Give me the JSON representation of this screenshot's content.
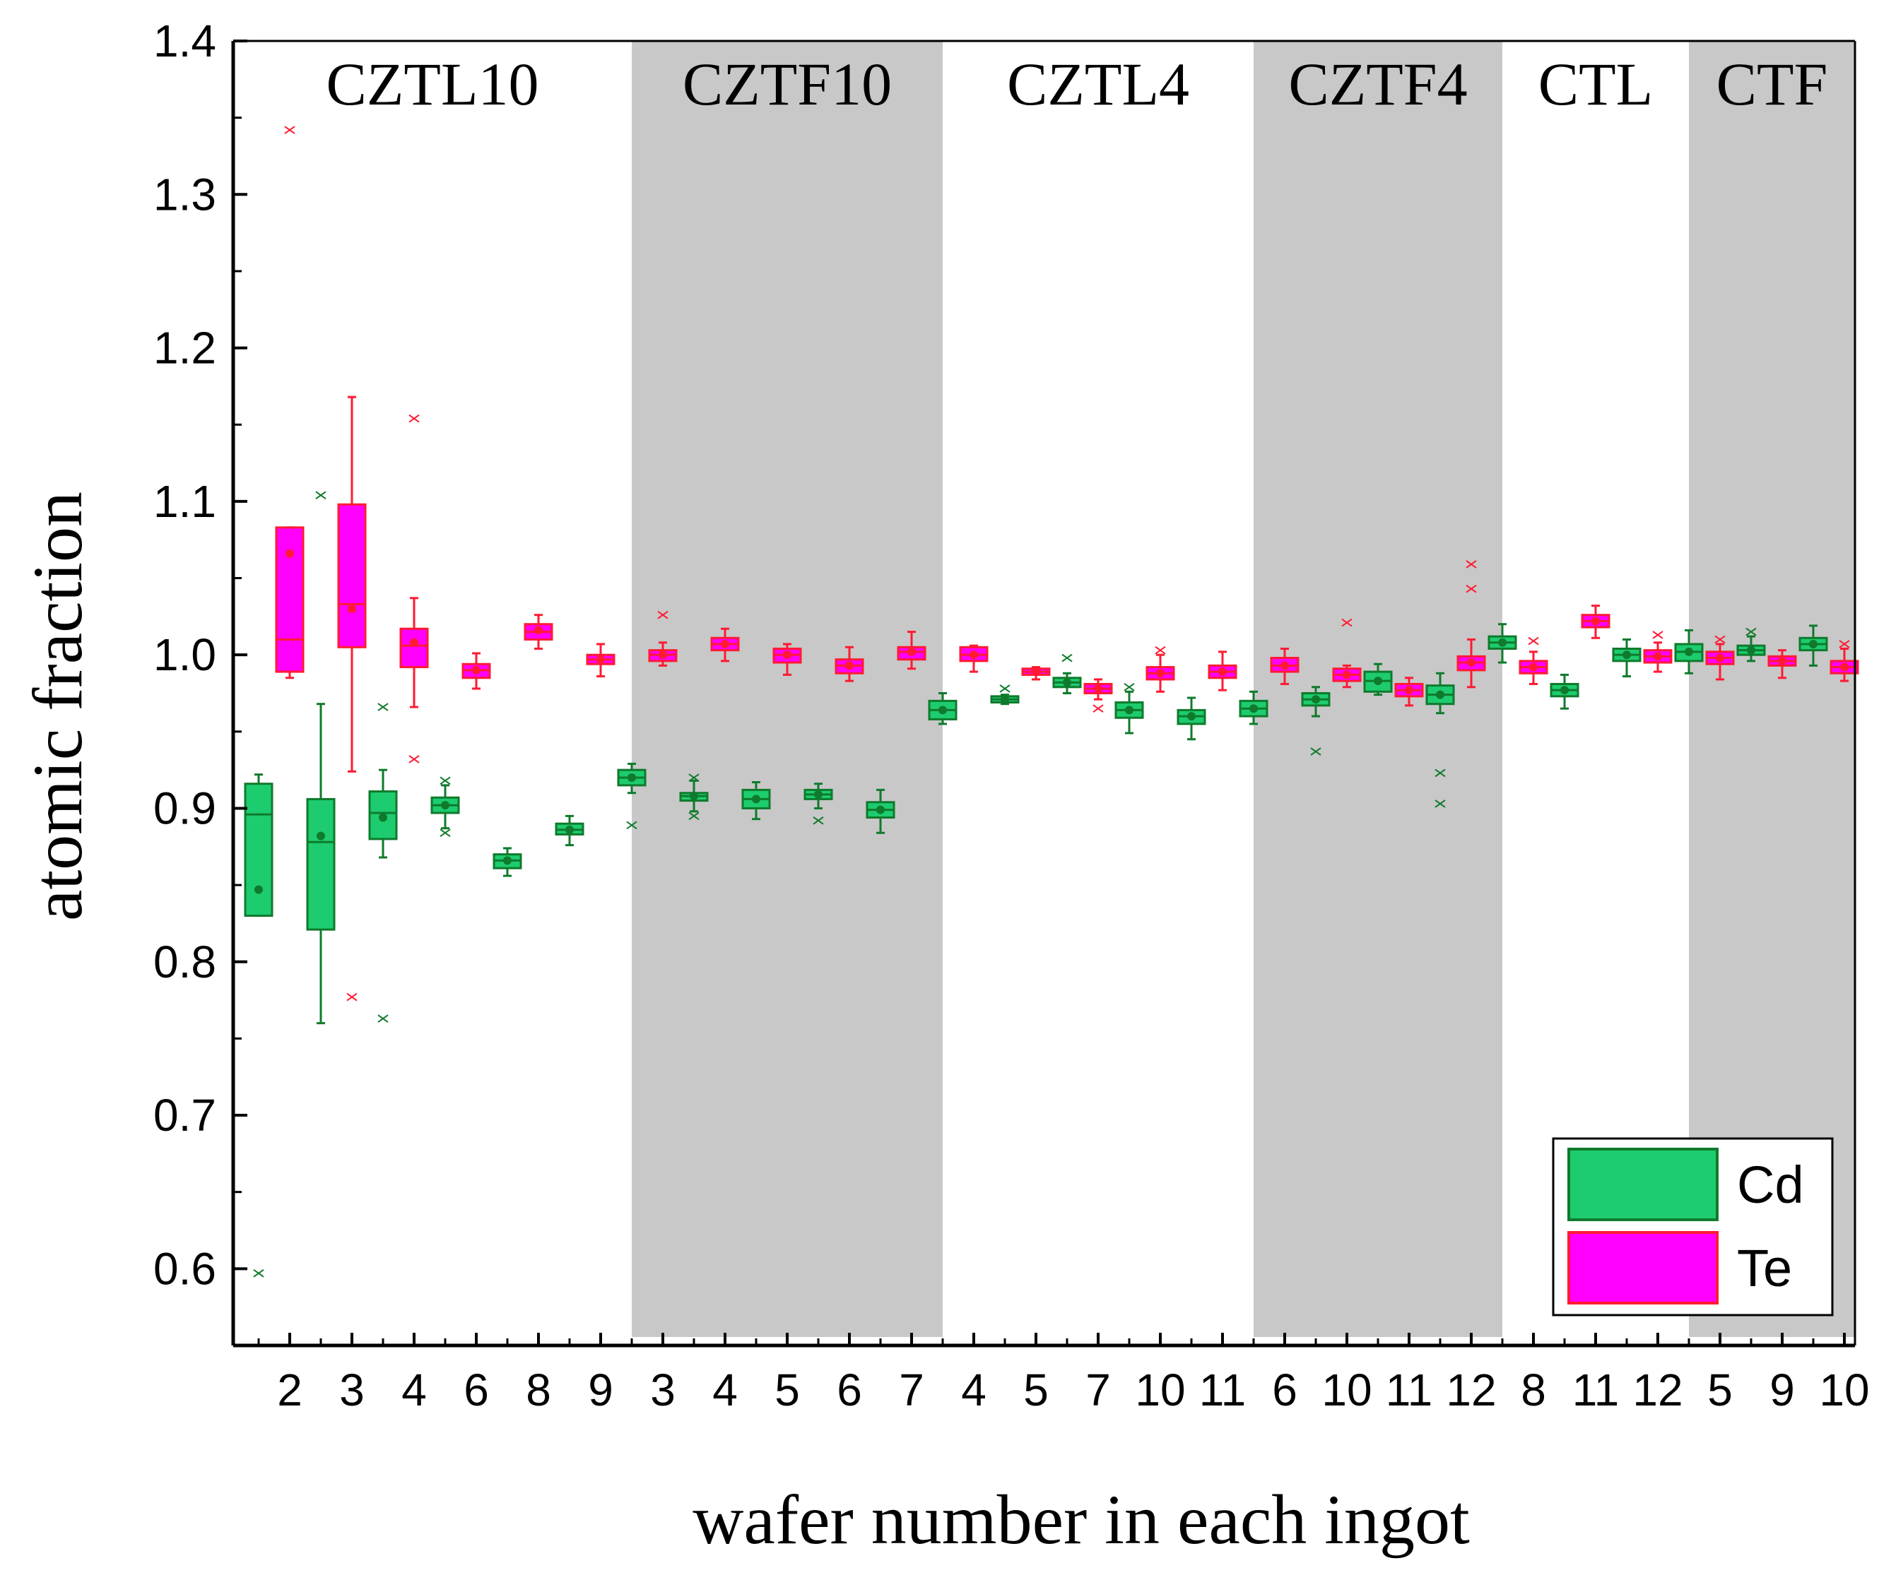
{
  "chart_data": {
    "type": "box",
    "title": "",
    "xlabel": "wafer number in each ingot",
    "ylabel": "atomic fraction",
    "ylim": [
      0.55,
      1.4
    ],
    "yticks": [
      "0.6",
      "0.7",
      "0.8",
      "0.9",
      "1.0",
      "1.1",
      "1.2",
      "1.3",
      "1.4"
    ],
    "legend": {
      "position": "bottom-right",
      "entries": [
        {
          "name": "Cd",
          "color": "#1dcc6f"
        },
        {
          "name": "Te",
          "color": "#ff00ff"
        }
      ]
    },
    "colors": {
      "cd_fill": "#1dcc6f",
      "cd_stroke": "#0f7a2c",
      "te_fill": "#ff00ff",
      "te_stroke": "#ff1a33",
      "shade": "#c8c8c8"
    },
    "groups": [
      {
        "name": "CZTL10",
        "shaded": false,
        "start": 0,
        "end": 6
      },
      {
        "name": "CZTF10",
        "shaded": true,
        "start": 6,
        "end": 11
      },
      {
        "name": "CZTL4",
        "shaded": false,
        "start": 11,
        "end": 16
      },
      {
        "name": "CZTF4",
        "shaded": true,
        "start": 16,
        "end": 20
      },
      {
        "name": "CTL",
        "shaded": false,
        "start": 20,
        "end": 23
      },
      {
        "name": "CTF",
        "shaded": true,
        "start": 23,
        "end": 26
      }
    ],
    "categories": [
      "2",
      "3",
      "4",
      "6",
      "8",
      "9",
      "3",
      "4",
      "5",
      "6",
      "7",
      "4",
      "5",
      "7",
      "10",
      "11",
      "6",
      "10",
      "11",
      "12",
      "8",
      "11",
      "12",
      "5",
      "9",
      "10"
    ],
    "series": [
      {
        "name": "Cd",
        "boxes": [
          {
            "q1": 0.83,
            "median": 0.896,
            "q3": 0.916,
            "mean": 0.847,
            "wlo": 0.83,
            "whi": 0.922,
            "outliers": [
              0.597
            ]
          },
          {
            "q1": 0.821,
            "median": 0.878,
            "q3": 0.906,
            "mean": 0.882,
            "wlo": 0.76,
            "whi": 0.968,
            "outliers": [
              1.104
            ]
          },
          {
            "q1": 0.88,
            "median": 0.897,
            "q3": 0.911,
            "mean": 0.894,
            "wlo": 0.868,
            "whi": 0.925,
            "outliers": [
              0.966,
              0.763
            ]
          },
          {
            "q1": 0.897,
            "median": 0.902,
            "q3": 0.907,
            "mean": 0.902,
            "wlo": 0.887,
            "whi": 0.915,
            "outliers": [
              0.918,
              0.884
            ]
          },
          {
            "q1": 0.861,
            "median": 0.866,
            "q3": 0.87,
            "mean": 0.866,
            "wlo": 0.856,
            "whi": 0.874,
            "outliers": []
          },
          {
            "q1": 0.883,
            "median": 0.886,
            "q3": 0.89,
            "mean": 0.886,
            "wlo": 0.876,
            "whi": 0.895,
            "outliers": []
          },
          {
            "q1": 0.915,
            "median": 0.92,
            "q3": 0.925,
            "mean": 0.92,
            "wlo": 0.91,
            "whi": 0.929,
            "outliers": [
              0.889
            ]
          },
          {
            "q1": 0.905,
            "median": 0.908,
            "q3": 0.91,
            "mean": 0.908,
            "wlo": 0.898,
            "whi": 0.918,
            "outliers": [
              0.92,
              0.895
            ]
          },
          {
            "q1": 0.9,
            "median": 0.906,
            "q3": 0.912,
            "mean": 0.906,
            "wlo": 0.893,
            "whi": 0.917,
            "outliers": []
          },
          {
            "q1": 0.906,
            "median": 0.909,
            "q3": 0.912,
            "mean": 0.909,
            "wlo": 0.9,
            "whi": 0.916,
            "outliers": [
              0.892
            ]
          },
          {
            "q1": 0.894,
            "median": 0.899,
            "q3": 0.904,
            "mean": 0.899,
            "wlo": 0.884,
            "whi": 0.912,
            "outliers": []
          },
          {
            "q1": 0.958,
            "median": 0.964,
            "q3": 0.97,
            "mean": 0.964,
            "wlo": 0.955,
            "whi": 0.975,
            "outliers": []
          },
          {
            "q1": 0.969,
            "median": 0.971,
            "q3": 0.973,
            "mean": 0.971,
            "wlo": 0.968,
            "whi": 0.974,
            "outliers": [
              0.978
            ]
          },
          {
            "q1": 0.979,
            "median": 0.982,
            "q3": 0.985,
            "mean": 0.982,
            "wlo": 0.975,
            "whi": 0.988,
            "outliers": [
              0.998
            ]
          },
          {
            "q1": 0.959,
            "median": 0.964,
            "q3": 0.969,
            "mean": 0.964,
            "wlo": 0.949,
            "whi": 0.976,
            "outliers": [
              0.979
            ]
          },
          {
            "q1": 0.955,
            "median": 0.96,
            "q3": 0.964,
            "mean": 0.96,
            "wlo": 0.945,
            "whi": 0.972,
            "outliers": []
          },
          {
            "q1": 0.96,
            "median": 0.965,
            "q3": 0.97,
            "mean": 0.965,
            "wlo": 0.955,
            "whi": 0.976,
            "outliers": []
          },
          {
            "q1": 0.967,
            "median": 0.971,
            "q3": 0.975,
            "mean": 0.971,
            "wlo": 0.96,
            "whi": 0.979,
            "outliers": [
              0.937
            ]
          },
          {
            "q1": 0.976,
            "median": 0.983,
            "q3": 0.989,
            "mean": 0.983,
            "wlo": 0.974,
            "whi": 0.994,
            "outliers": []
          },
          {
            "q1": 0.968,
            "median": 0.974,
            "q3": 0.98,
            "mean": 0.974,
            "wlo": 0.962,
            "whi": 0.988,
            "outliers": [
              0.923,
              0.903
            ]
          },
          {
            "q1": 1.004,
            "median": 1.008,
            "q3": 1.012,
            "mean": 1.008,
            "wlo": 0.995,
            "whi": 1.02,
            "outliers": []
          },
          {
            "q1": 0.973,
            "median": 0.977,
            "q3": 0.981,
            "mean": 0.977,
            "wlo": 0.965,
            "whi": 0.987,
            "outliers": []
          },
          {
            "q1": 0.996,
            "median": 1.0,
            "q3": 1.004,
            "mean": 1.0,
            "wlo": 0.986,
            "whi": 1.01,
            "outliers": []
          },
          {
            "q1": 0.996,
            "median": 1.002,
            "q3": 1.007,
            "mean": 1.002,
            "wlo": 0.988,
            "whi": 1.016,
            "outliers": []
          },
          {
            "q1": 1.0,
            "median": 1.003,
            "q3": 1.006,
            "mean": 1.003,
            "wlo": 0.996,
            "whi": 1.012,
            "outliers": [
              1.015
            ]
          },
          {
            "q1": 1.003,
            "median": 1.007,
            "q3": 1.011,
            "mean": 1.007,
            "wlo": 0.993,
            "whi": 1.019,
            "outliers": []
          }
        ]
      },
      {
        "name": "Te",
        "boxes": [
          {
            "q1": 0.989,
            "median": 1.01,
            "q3": 1.083,
            "mean": 1.066,
            "wlo": 0.985,
            "whi": 1.083,
            "outliers": [
              1.342
            ]
          },
          {
            "q1": 1.005,
            "median": 1.033,
            "q3": 1.098,
            "mean": 1.03,
            "wlo": 0.924,
            "whi": 1.168,
            "outliers": [
              0.777
            ]
          },
          {
            "q1": 0.992,
            "median": 1.006,
            "q3": 1.017,
            "mean": 1.008,
            "wlo": 0.966,
            "whi": 1.037,
            "outliers": [
              1.154,
              0.932
            ]
          },
          {
            "q1": 0.985,
            "median": 0.99,
            "q3": 0.994,
            "mean": 0.99,
            "wlo": 0.978,
            "whi": 1.001,
            "outliers": []
          },
          {
            "q1": 1.01,
            "median": 1.015,
            "q3": 1.02,
            "mean": 1.016,
            "wlo": 1.004,
            "whi": 1.026,
            "outliers": []
          },
          {
            "q1": 0.994,
            "median": 0.997,
            "q3": 1.0,
            "mean": 0.997,
            "wlo": 0.986,
            "whi": 1.007,
            "outliers": []
          },
          {
            "q1": 0.996,
            "median": 1.0,
            "q3": 1.003,
            "mean": 1.0,
            "wlo": 0.993,
            "whi": 1.008,
            "outliers": [
              1.026
            ]
          },
          {
            "q1": 1.003,
            "median": 1.007,
            "q3": 1.011,
            "mean": 1.007,
            "wlo": 0.996,
            "whi": 1.017,
            "outliers": []
          },
          {
            "q1": 0.995,
            "median": 1.0,
            "q3": 1.004,
            "mean": 1.0,
            "wlo": 0.987,
            "whi": 1.007,
            "outliers": []
          },
          {
            "q1": 0.988,
            "median": 0.993,
            "q3": 0.997,
            "mean": 0.993,
            "wlo": 0.983,
            "whi": 1.005,
            "outliers": []
          },
          {
            "q1": 0.997,
            "median": 1.002,
            "q3": 1.005,
            "mean": 1.002,
            "wlo": 0.991,
            "whi": 1.015,
            "outliers": []
          },
          {
            "q1": 0.996,
            "median": 1.0,
            "q3": 1.005,
            "mean": 1.0,
            "wlo": 0.989,
            "whi": 1.006,
            "outliers": []
          },
          {
            "q1": 0.987,
            "median": 0.989,
            "q3": 0.991,
            "mean": 0.989,
            "wlo": 0.984,
            "whi": 0.992,
            "outliers": []
          },
          {
            "q1": 0.975,
            "median": 0.978,
            "q3": 0.981,
            "mean": 0.978,
            "wlo": 0.971,
            "whi": 0.984,
            "outliers": [
              0.965
            ]
          },
          {
            "q1": 0.984,
            "median": 0.988,
            "q3": 0.992,
            "mean": 0.988,
            "wlo": 0.976,
            "whi": 1.0,
            "outliers": [
              1.003
            ]
          },
          {
            "q1": 0.985,
            "median": 0.989,
            "q3": 0.993,
            "mean": 0.989,
            "wlo": 0.977,
            "whi": 1.002,
            "outliers": []
          },
          {
            "q1": 0.989,
            "median": 0.993,
            "q3": 0.998,
            "mean": 0.993,
            "wlo": 0.981,
            "whi": 1.004,
            "outliers": []
          },
          {
            "q1": 0.983,
            "median": 0.987,
            "q3": 0.991,
            "mean": 0.987,
            "wlo": 0.979,
            "whi": 0.993,
            "outliers": [
              1.021
            ]
          },
          {
            "q1": 0.973,
            "median": 0.977,
            "q3": 0.981,
            "mean": 0.977,
            "wlo": 0.967,
            "whi": 0.985,
            "outliers": []
          },
          {
            "q1": 0.99,
            "median": 0.995,
            "q3": 0.999,
            "mean": 0.995,
            "wlo": 0.979,
            "whi": 1.01,
            "outliers": [
              1.059,
              1.043
            ]
          },
          {
            "q1": 0.988,
            "median": 0.992,
            "q3": 0.996,
            "mean": 0.992,
            "wlo": 0.981,
            "whi": 1.002,
            "outliers": [
              1.009
            ]
          },
          {
            "q1": 1.018,
            "median": 1.022,
            "q3": 1.026,
            "mean": 1.022,
            "wlo": 1.011,
            "whi": 1.032,
            "outliers": []
          },
          {
            "q1": 0.995,
            "median": 0.999,
            "q3": 1.003,
            "mean": 0.999,
            "wlo": 0.989,
            "whi": 1.008,
            "outliers": [
              1.013
            ]
          },
          {
            "q1": 0.994,
            "median": 0.998,
            "q3": 1.002,
            "mean": 0.998,
            "wlo": 0.984,
            "whi": 1.007,
            "outliers": [
              1.01
            ]
          },
          {
            "q1": 0.993,
            "median": 0.996,
            "q3": 0.999,
            "mean": 0.996,
            "wlo": 0.985,
            "whi": 1.003,
            "outliers": []
          },
          {
            "q1": 0.988,
            "median": 0.992,
            "q3": 0.996,
            "mean": 0.992,
            "wlo": 0.983,
            "whi": 1.004,
            "outliers": [
              1.007
            ]
          }
        ]
      }
    ]
  }
}
